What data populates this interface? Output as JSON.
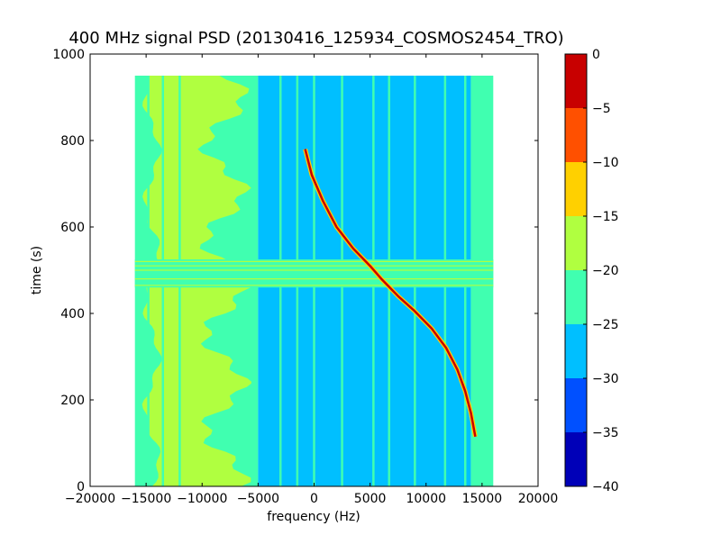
{
  "chart_data": {
    "type": "heatmap",
    "title": "400 MHz signal PSD (20130416_125934_COSMOS2454_TRO)",
    "xlabel": "frequency (Hz)",
    "ylabel": "time (s)",
    "xlim": [
      -20000,
      20000
    ],
    "ylim": [
      0,
      1000
    ],
    "xticks": [
      -20000,
      -15000,
      -10000,
      -5000,
      0,
      5000,
      10000,
      15000,
      20000
    ],
    "xtick_labels": [
      "−20000",
      "−15000",
      "−10000",
      "−5000",
      "0",
      "5000",
      "10000",
      "15000",
      "20000"
    ],
    "yticks": [
      0,
      200,
      400,
      600,
      800,
      1000
    ],
    "ytick_labels": [
      "0",
      "200",
      "400",
      "600",
      "800",
      "1000"
    ],
    "data_extent": {
      "x": [
        -16000,
        16000
      ],
      "y": [
        0,
        950
      ]
    },
    "colorbar": {
      "levels": [
        -40,
        -35,
        -30,
        -25,
        -20,
        -15,
        -10,
        -5,
        0
      ],
      "level_labels": [
        "−40",
        "−35",
        "−30",
        "−25",
        "−20",
        "−15",
        "−10",
        "−5",
        "0"
      ],
      "colors": [
        "#0000b8",
        "#0050ff",
        "#00bfff",
        "#40ffb0",
        "#b0ff40",
        "#ffd000",
        "#ff5000",
        "#c80000"
      ]
    },
    "regions": [
      {
        "x": [
          -16000,
          -5000
        ],
        "y": [
          0,
          950
        ],
        "level": -22.5
      },
      {
        "x": [
          -5000,
          -3000
        ],
        "y": [
          0,
          950
        ],
        "level": -26
      },
      {
        "x": [
          -3000,
          14000
        ],
        "y": [
          0,
          950
        ],
        "level": -27.5
      },
      {
        "x": [
          14000,
          16000
        ],
        "y": [
          0,
          950
        ],
        "level": -22.5
      },
      {
        "x": [
          -14800,
          -8000
        ],
        "y": [
          0,
          950
        ],
        "level": -17.5,
        "note": "wavy band"
      },
      {
        "x": [
          -16000,
          16000
        ],
        "y": [
          460,
          525
        ],
        "level": -22.5,
        "note": "horizontal band"
      }
    ],
    "vertical_lines": [
      -14800,
      -13500,
      -12000,
      -5500,
      -3000,
      -1500,
      0,
      2500,
      5300,
      6700,
      9000,
      11700,
      13500
    ],
    "horizontal_lines": [
      465,
      480,
      500,
      510,
      520
    ],
    "signal_trace": {
      "level": -2.5,
      "points": [
        [
          -800,
          780
        ],
        [
          -200,
          720
        ],
        [
          800,
          660
        ],
        [
          2000,
          600
        ],
        [
          3500,
          550
        ],
        [
          5000,
          510
        ],
        [
          6000,
          480
        ],
        [
          7500,
          440
        ],
        [
          9000,
          405
        ],
        [
          10500,
          365
        ],
        [
          11800,
          320
        ],
        [
          12800,
          270
        ],
        [
          13500,
          220
        ],
        [
          14000,
          170
        ],
        [
          14400,
          115
        ]
      ]
    }
  }
}
